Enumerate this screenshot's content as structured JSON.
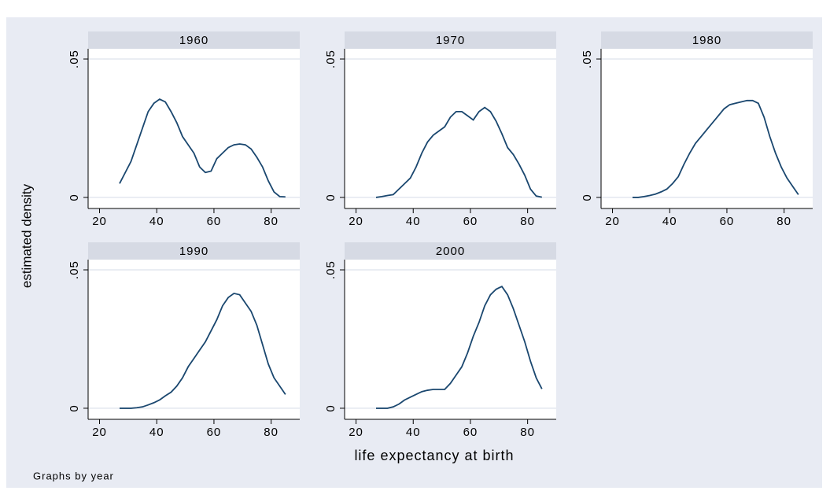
{
  "y_label": "estimated density",
  "x_label": "life expectancy at birth",
  "note": "Graphs by year",
  "chart_data": [
    {
      "type": "line",
      "title": "1960",
      "color": "#1a476f",
      "grid": true,
      "x": [
        27,
        29,
        31,
        33,
        35,
        37,
        39,
        41,
        43,
        45,
        47,
        49,
        51,
        53,
        55,
        57,
        59,
        61,
        63,
        65,
        67,
        69,
        71,
        73,
        75,
        77,
        79,
        81,
        83,
        85
      ],
      "values": [
        0.005,
        0.009,
        0.013,
        0.019,
        0.025,
        0.031,
        0.034,
        0.0355,
        0.0345,
        0.031,
        0.027,
        0.022,
        0.019,
        0.016,
        0.011,
        0.009,
        0.0095,
        0.014,
        0.016,
        0.018,
        0.019,
        0.0193,
        0.019,
        0.0175,
        0.0145,
        0.011,
        0.006,
        0.002,
        0.0003,
        0.0002
      ],
      "xlim": [
        16,
        90
      ],
      "ylim": [
        -0.004,
        0.0537
      ],
      "xticks": [
        20,
        40,
        60,
        80
      ],
      "yticks": [
        0,
        {
          "value": 0.05,
          "label": ".05"
        }
      ]
    },
    {
      "type": "line",
      "title": "1970",
      "color": "#1a476f",
      "grid": true,
      "x": [
        27,
        29,
        31,
        33,
        35,
        37,
        39,
        41,
        43,
        45,
        47,
        49,
        51,
        53,
        55,
        57,
        59,
        61,
        63,
        65,
        67,
        69,
        71,
        73,
        75,
        77,
        79,
        81,
        83,
        85
      ],
      "values": [
        0,
        0.0003,
        0.0007,
        0.001,
        0.003,
        0.005,
        0.007,
        0.011,
        0.016,
        0.02,
        0.0225,
        0.024,
        0.0255,
        0.029,
        0.031,
        0.031,
        0.0295,
        0.028,
        0.031,
        0.0325,
        0.031,
        0.0275,
        0.023,
        0.018,
        0.0155,
        0.012,
        0.008,
        0.003,
        0.0005,
        0.0001
      ],
      "xlim": [
        16,
        90
      ],
      "ylim": [
        -0.004,
        0.0537
      ],
      "xticks": [
        20,
        40,
        60,
        80
      ],
      "yticks": [
        0,
        {
          "value": 0.05,
          "label": ".05"
        }
      ]
    },
    {
      "type": "line",
      "title": "1980",
      "color": "#1a476f",
      "grid": true,
      "x": [
        27,
        29,
        31,
        33,
        35,
        37,
        39,
        41,
        43,
        45,
        47,
        49,
        51,
        53,
        55,
        57,
        59,
        61,
        63,
        65,
        67,
        69,
        71,
        73,
        75,
        77,
        79,
        81,
        83,
        85
      ],
      "values": [
        0,
        0,
        0.0003,
        0.0007,
        0.0012,
        0.002,
        0.003,
        0.005,
        0.0075,
        0.012,
        0.016,
        0.0195,
        0.022,
        0.0245,
        0.027,
        0.0295,
        0.032,
        0.0335,
        0.034,
        0.0345,
        0.035,
        0.035,
        0.034,
        0.029,
        0.022,
        0.016,
        0.011,
        0.007,
        0.004,
        0.001
      ],
      "xlim": [
        16,
        90
      ],
      "ylim": [
        -0.004,
        0.0537
      ],
      "xticks": [
        20,
        40,
        60,
        80
      ],
      "yticks": [
        0,
        {
          "value": 0.05,
          "label": ".05"
        }
      ]
    },
    {
      "type": "line",
      "title": "1990",
      "color": "#1a476f",
      "grid": true,
      "x": [
        27,
        29,
        31,
        33,
        35,
        37,
        39,
        41,
        43,
        45,
        47,
        49,
        51,
        53,
        55,
        57,
        59,
        61,
        63,
        65,
        67,
        69,
        71,
        73,
        75,
        77,
        79,
        81,
        83,
        85
      ],
      "values": [
        0,
        0,
        0,
        0.0002,
        0.0005,
        0.0012,
        0.002,
        0.003,
        0.0045,
        0.0058,
        0.008,
        0.011,
        0.015,
        0.018,
        0.021,
        0.024,
        0.028,
        0.032,
        0.037,
        0.04,
        0.0415,
        0.041,
        0.038,
        0.035,
        0.03,
        0.023,
        0.016,
        0.011,
        0.008,
        0.005
      ],
      "xlim": [
        16,
        90
      ],
      "ylim": [
        -0.004,
        0.0537
      ],
      "xticks": [
        20,
        40,
        60,
        80
      ],
      "yticks": [
        0,
        {
          "value": 0.05,
          "label": ".05"
        }
      ]
    },
    {
      "type": "line",
      "title": "2000",
      "color": "#1a476f",
      "grid": true,
      "x": [
        27,
        29,
        31,
        33,
        35,
        37,
        39,
        41,
        43,
        45,
        47,
        49,
        51,
        53,
        55,
        57,
        59,
        61,
        63,
        65,
        67,
        69,
        71,
        73,
        75,
        77,
        79,
        81,
        83,
        85
      ],
      "values": [
        0,
        0,
        0,
        0.0005,
        0.0015,
        0.003,
        0.004,
        0.005,
        0.006,
        0.0065,
        0.0068,
        0.0068,
        0.0068,
        0.009,
        0.012,
        0.015,
        0.02,
        0.026,
        0.031,
        0.037,
        0.041,
        0.043,
        0.044,
        0.041,
        0.036,
        0.03,
        0.024,
        0.017,
        0.011,
        0.007
      ],
      "xlim": [
        16,
        90
      ],
      "ylim": [
        -0.004,
        0.0537
      ],
      "xticks": [
        20,
        40,
        60,
        80
      ],
      "yticks": [
        0,
        {
          "value": 0.05,
          "label": ".05"
        }
      ]
    }
  ]
}
